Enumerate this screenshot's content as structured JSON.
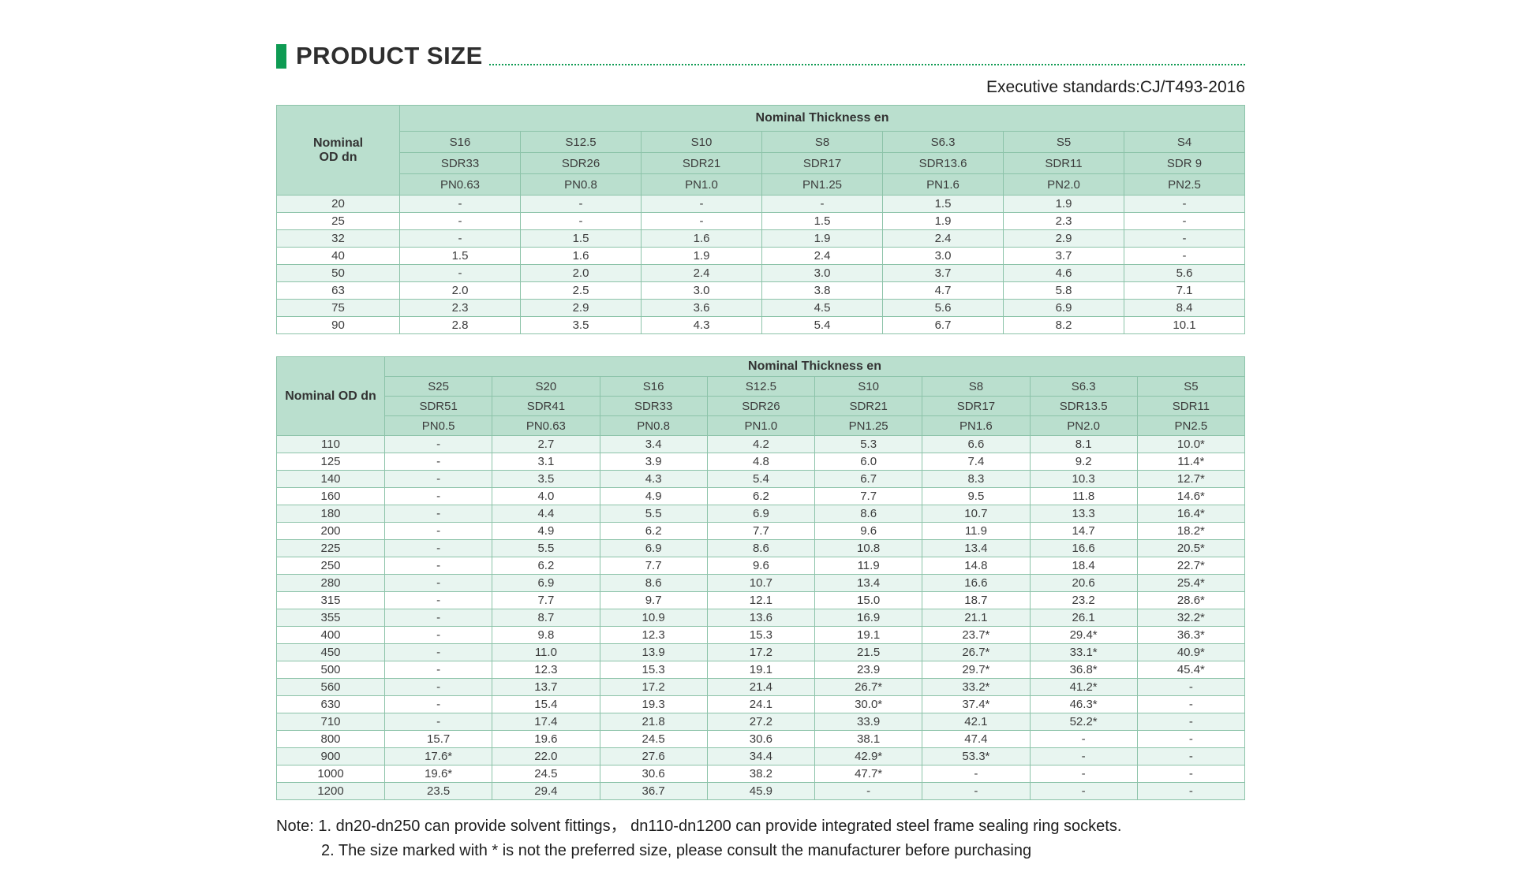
{
  "page": {
    "title": "PRODUCT SIZE",
    "standard": "Executive standards:CJ/T493-2016",
    "notes": [
      "Note: 1. dn20-dn250 can provide solvent fittings， dn110-dn1200 can provide integrated steel frame sealing ring sockets.",
      "2. The size marked with * is not the preferred size, please consult the manufacturer before purchasing"
    ]
  },
  "colors": {
    "accent_green": "#0e9b53",
    "header_bg": "#badfce",
    "row_alt_bg": "#e8f5f0",
    "border": "#8cc3a9",
    "text": "#3c3c3c"
  },
  "table1": {
    "corner_lines": [
      "Nominal",
      "OD dn"
    ],
    "group_header": "Nominal Thickness en",
    "s_labels": [
      "S16",
      "S12.5",
      "S10",
      "S8",
      "S6.3",
      "S5",
      "S4"
    ],
    "sdr_labels": [
      "SDR33",
      "SDR26",
      "SDR21",
      "SDR17",
      "SDR13.6",
      "SDR11",
      "SDR 9"
    ],
    "pn_labels": [
      "PN0.63",
      "PN0.8",
      "PN1.0",
      "PN1.25",
      "PN1.6",
      "PN2.0",
      "PN2.5"
    ],
    "rows": [
      {
        "dn": "20",
        "values": [
          "-",
          "-",
          "-",
          "-",
          "1.5",
          "1.9",
          "-"
        ]
      },
      {
        "dn": "25",
        "values": [
          "-",
          "-",
          "-",
          "1.5",
          "1.9",
          "2.3",
          "-"
        ]
      },
      {
        "dn": "32",
        "values": [
          "-",
          "1.5",
          "1.6",
          "1.9",
          "2.4",
          "2.9",
          "-"
        ]
      },
      {
        "dn": "40",
        "values": [
          "1.5",
          "1.6",
          "1.9",
          "2.4",
          "3.0",
          "3.7",
          "-"
        ]
      },
      {
        "dn": "50",
        "values": [
          "-",
          "2.0",
          "2.4",
          "3.0",
          "3.7",
          "4.6",
          "5.6"
        ]
      },
      {
        "dn": "63",
        "values": [
          "2.0",
          "2.5",
          "3.0",
          "3.8",
          "4.7",
          "5.8",
          "7.1"
        ]
      },
      {
        "dn": "75",
        "values": [
          "2.3",
          "2.9",
          "3.6",
          "4.5",
          "5.6",
          "6.9",
          "8.4"
        ]
      },
      {
        "dn": "90",
        "values": [
          "2.8",
          "3.5",
          "4.3",
          "5.4",
          "6.7",
          "8.2",
          "10.1"
        ]
      }
    ]
  },
  "table2": {
    "corner_lines": [
      "Nominal OD dn"
    ],
    "group_header": "Nominal Thickness en",
    "s_labels": [
      "S25",
      "S20",
      "S16",
      "S12.5",
      "S10",
      "S8",
      "S6.3",
      "S5"
    ],
    "sdr_labels": [
      "SDR51",
      "SDR41",
      "SDR33",
      "SDR26",
      "SDR21",
      "SDR17",
      "SDR13.5",
      "SDR11"
    ],
    "pn_labels": [
      "PN0.5",
      "PN0.63",
      "PN0.8",
      "PN1.0",
      "PN1.25",
      "PN1.6",
      "PN2.0",
      "PN2.5"
    ],
    "rows": [
      {
        "dn": "110",
        "values": [
          "-",
          "2.7",
          "3.4",
          "4.2",
          "5.3",
          "6.6",
          "8.1",
          "10.0*"
        ]
      },
      {
        "dn": "125",
        "values": [
          "-",
          "3.1",
          "3.9",
          "4.8",
          "6.0",
          "7.4",
          "9.2",
          "11.4*"
        ]
      },
      {
        "dn": "140",
        "values": [
          "-",
          "3.5",
          "4.3",
          "5.4",
          "6.7",
          "8.3",
          "10.3",
          "12.7*"
        ]
      },
      {
        "dn": "160",
        "values": [
          "-",
          "4.0",
          "4.9",
          "6.2",
          "7.7",
          "9.5",
          "11.8",
          "14.6*"
        ]
      },
      {
        "dn": "180",
        "values": [
          "-",
          "4.4",
          "5.5",
          "6.9",
          "8.6",
          "10.7",
          "13.3",
          "16.4*"
        ]
      },
      {
        "dn": "200",
        "values": [
          "-",
          "4.9",
          "6.2",
          "7.7",
          "9.6",
          "11.9",
          "14.7",
          "18.2*"
        ]
      },
      {
        "dn": "225",
        "values": [
          "-",
          "5.5",
          "6.9",
          "8.6",
          "10.8",
          "13.4",
          "16.6",
          "20.5*"
        ]
      },
      {
        "dn": "250",
        "values": [
          "-",
          "6.2",
          "7.7",
          "9.6",
          "11.9",
          "14.8",
          "18.4",
          "22.7*"
        ]
      },
      {
        "dn": "280",
        "values": [
          "-",
          "6.9",
          "8.6",
          "10.7",
          "13.4",
          "16.6",
          "20.6",
          "25.4*"
        ]
      },
      {
        "dn": "315",
        "values": [
          "-",
          "7.7",
          "9.7",
          "12.1",
          "15.0",
          "18.7",
          "23.2",
          "28.6*"
        ]
      },
      {
        "dn": "355",
        "values": [
          "-",
          "8.7",
          "10.9",
          "13.6",
          "16.9",
          "21.1",
          "26.1",
          "32.2*"
        ]
      },
      {
        "dn": "400",
        "values": [
          "-",
          "9.8",
          "12.3",
          "15.3",
          "19.1",
          "23.7*",
          "29.4*",
          "36.3*"
        ]
      },
      {
        "dn": "450",
        "values": [
          "-",
          "11.0",
          "13.9",
          "17.2",
          "21.5",
          "26.7*",
          "33.1*",
          "40.9*"
        ]
      },
      {
        "dn": "500",
        "values": [
          "-",
          "12.3",
          "15.3",
          "19.1",
          "23.9",
          "29.7*",
          "36.8*",
          "45.4*"
        ]
      },
      {
        "dn": "560",
        "values": [
          "-",
          "13.7",
          "17.2",
          "21.4",
          "26.7*",
          "33.2*",
          "41.2*",
          "-"
        ]
      },
      {
        "dn": "630",
        "values": [
          "-",
          "15.4",
          "19.3",
          "24.1",
          "30.0*",
          "37.4*",
          "46.3*",
          "-"
        ]
      },
      {
        "dn": "710",
        "values": [
          "-",
          "17.4",
          "21.8",
          "27.2",
          "33.9",
          "42.1",
          "52.2*",
          "-"
        ]
      },
      {
        "dn": "800",
        "values": [
          "15.7",
          "19.6",
          "24.5",
          "30.6",
          "38.1",
          "47.4",
          "-",
          "-"
        ]
      },
      {
        "dn": "900",
        "values": [
          "17.6*",
          "22.0",
          "27.6",
          "34.4",
          "42.9*",
          "53.3*",
          "-",
          "-"
        ]
      },
      {
        "dn": "1000",
        "values": [
          "19.6*",
          "24.5",
          "30.6",
          "38.2",
          "47.7*",
          "-",
          "-",
          "-"
        ]
      },
      {
        "dn": "1200",
        "values": [
          "23.5",
          "29.4",
          "36.7",
          "45.9",
          "-",
          "-",
          "-",
          "-"
        ]
      }
    ]
  }
}
